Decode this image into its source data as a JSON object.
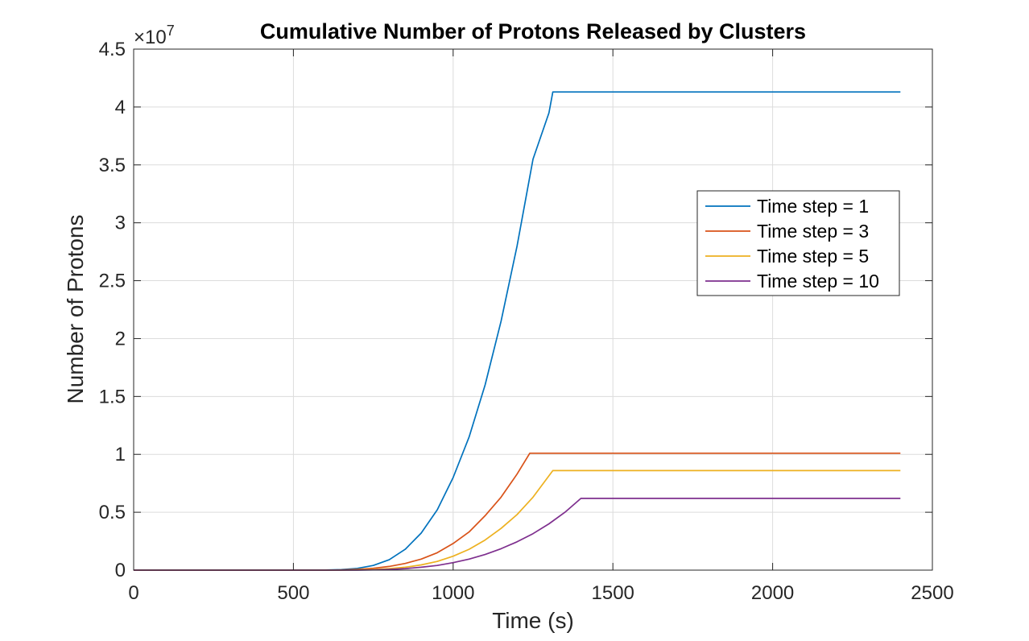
{
  "chart_data": {
    "type": "line",
    "title": "Cumulative Number of Protons Released by Clusters",
    "xlabel": "Time (s)",
    "ylabel": "Number of Protons",
    "xlim": [
      0,
      2500
    ],
    "ylim": [
      0,
      45000000
    ],
    "y_multiplier_label": "×10",
    "y_multiplier_exponent": "7",
    "x_ticks": [
      0,
      500,
      1000,
      1500,
      2000,
      2500
    ],
    "x_tick_labels": [
      "0",
      "500",
      "1000",
      "1500",
      "2000",
      "2500"
    ],
    "y_ticks": [
      0,
      5000000,
      10000000,
      15000000,
      20000000,
      25000000,
      30000000,
      35000000,
      40000000,
      45000000
    ],
    "y_tick_labels": [
      "0",
      "0.5",
      "1",
      "1.5",
      "2",
      "2.5",
      "3",
      "3.5",
      "4",
      "4.5"
    ],
    "grid": true,
    "legend_position": "right",
    "series": [
      {
        "name": "Time step = 1",
        "color": "#0072BD",
        "x": [
          0,
          550,
          600,
          650,
          700,
          750,
          800,
          850,
          900,
          950,
          1000,
          1050,
          1100,
          1150,
          1200,
          1250,
          1300,
          1312,
          2400
        ],
        "values": [
          0,
          0,
          10000,
          50000,
          150000,
          400000,
          900000,
          1800000,
          3200000,
          5200000,
          8000000,
          11500000,
          16000000,
          21500000,
          28000000,
          35500000,
          39500000,
          41300000,
          41300000
        ]
      },
      {
        "name": "Time step = 3",
        "color": "#D95319",
        "x": [
          0,
          600,
          650,
          700,
          750,
          800,
          850,
          900,
          950,
          1000,
          1050,
          1100,
          1150,
          1200,
          1240,
          2400
        ],
        "values": [
          0,
          0,
          20000,
          70000,
          160000,
          320000,
          580000,
          950000,
          1500000,
          2300000,
          3300000,
          4700000,
          6300000,
          8300000,
          10100000,
          10100000
        ]
      },
      {
        "name": "Time step = 5",
        "color": "#EDB120",
        "x": [
          0,
          650,
          700,
          750,
          800,
          850,
          900,
          950,
          1000,
          1050,
          1100,
          1150,
          1200,
          1250,
          1312,
          2400
        ],
        "values": [
          0,
          0,
          20000,
          60000,
          130000,
          250000,
          450000,
          750000,
          1200000,
          1800000,
          2600000,
          3600000,
          4800000,
          6300000,
          8600000,
          8600000
        ]
      },
      {
        "name": "Time step = 10",
        "color": "#7E2F8E",
        "x": [
          0,
          700,
          750,
          800,
          850,
          900,
          950,
          1000,
          1050,
          1100,
          1150,
          1200,
          1250,
          1300,
          1350,
          1400,
          2400
        ],
        "values": [
          0,
          0,
          20000,
          60000,
          130000,
          250000,
          400000,
          650000,
          950000,
          1350000,
          1850000,
          2450000,
          3150000,
          4000000,
          5000000,
          6200000,
          6200000
        ]
      }
    ]
  }
}
